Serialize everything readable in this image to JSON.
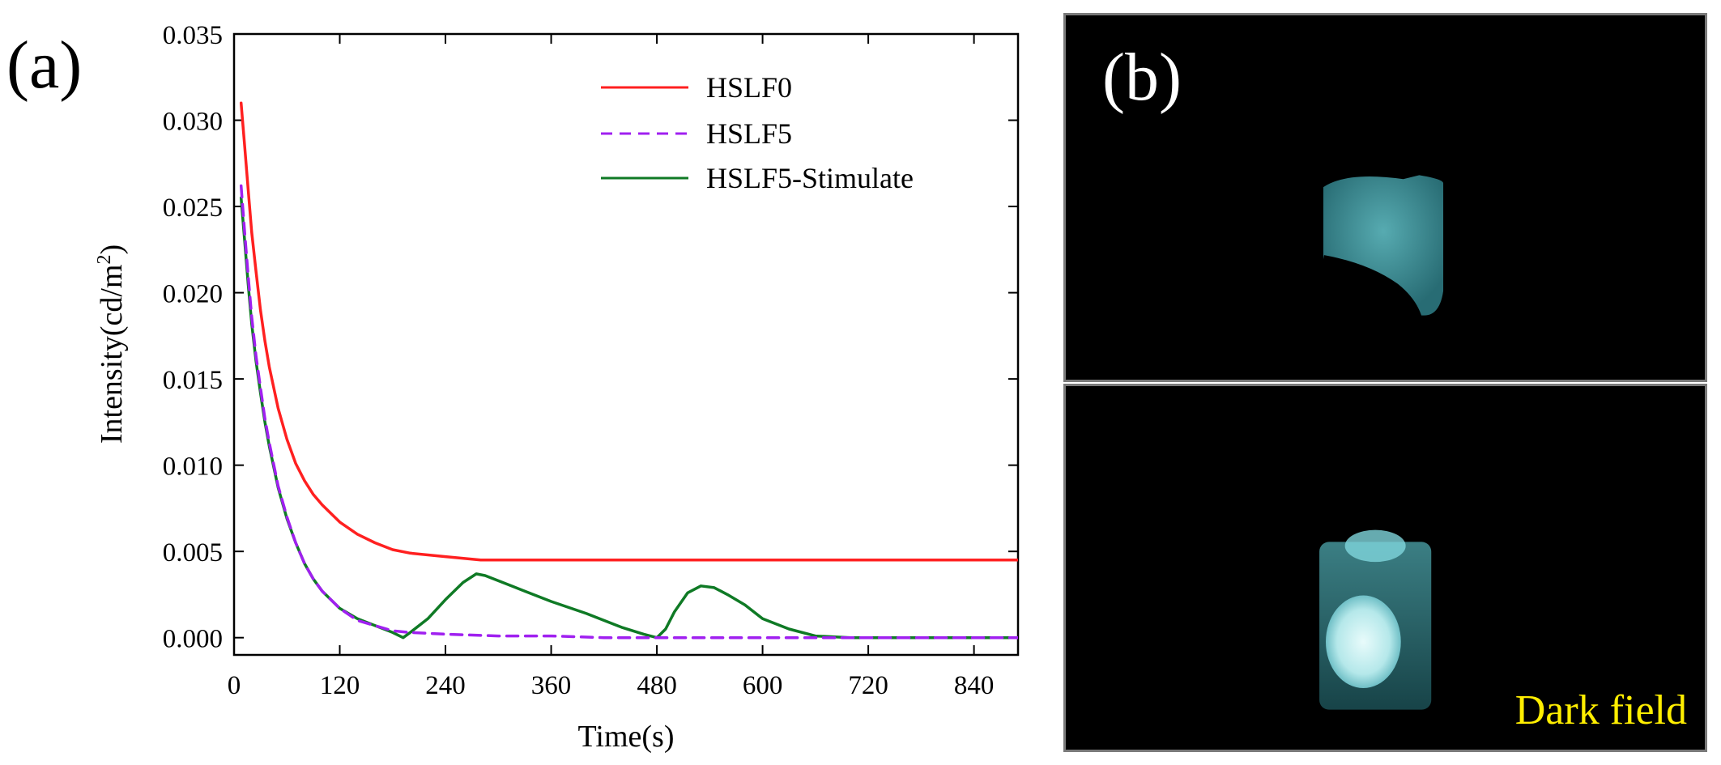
{
  "panel_a_label": "(a)",
  "panel_b_label": "(b)",
  "dark_field_caption": "Dark field",
  "colors": {
    "HSLF0": "#ff2020",
    "HSLF5": "#a020f0",
    "HSLF5-Stimulate": "#0f7a25",
    "caption": "#ffee00",
    "glow": "#5fcfd6"
  },
  "chart_data": {
    "type": "line",
    "title": "",
    "xlabel": "Time(s)",
    "ylabel": "Intensity(cd/m",
    "ylabel_superscript": "2",
    "ylabel_suffix": ")",
    "xlim": [
      0,
      890
    ],
    "ylim": [
      -0.001,
      0.035
    ],
    "x_ticks": [
      0,
      120,
      240,
      360,
      480,
      600,
      720,
      840
    ],
    "y_ticks": [
      0.0,
      0.005,
      0.01,
      0.015,
      0.02,
      0.025,
      0.03,
      0.035
    ],
    "y_tick_labels": [
      "0.000",
      "0.005",
      "0.010",
      "0.015",
      "0.020",
      "0.025",
      "0.030",
      "0.035"
    ],
    "legend_position": "top-right",
    "series": [
      {
        "name": "HSLF0",
        "style": "solid",
        "x": [
          8,
          12,
          16,
          20,
          25,
          30,
          35,
          40,
          50,
          60,
          70,
          80,
          90,
          100,
          120,
          140,
          160,
          180,
          200,
          240,
          280,
          320,
          360,
          480,
          600,
          720,
          840,
          890
        ],
        "y": [
          0.031,
          0.0285,
          0.026,
          0.0235,
          0.0212,
          0.019,
          0.0172,
          0.0157,
          0.0133,
          0.0115,
          0.0101,
          0.0091,
          0.0083,
          0.0077,
          0.0067,
          0.006,
          0.0055,
          0.0051,
          0.0049,
          0.0047,
          0.0045,
          0.0045,
          0.0045,
          0.0045,
          0.0045,
          0.0045,
          0.0045,
          0.0045
        ]
      },
      {
        "name": "HSLF5",
        "style": "dashed",
        "x": [
          8,
          12,
          16,
          20,
          25,
          30,
          35,
          40,
          50,
          60,
          70,
          80,
          90,
          100,
          120,
          140,
          160,
          180,
          200,
          240,
          300,
          360,
          420,
          480,
          600,
          720,
          840,
          890
        ],
        "y": [
          0.0262,
          0.0235,
          0.021,
          0.0186,
          0.0163,
          0.0145,
          0.0127,
          0.0113,
          0.0088,
          0.007,
          0.0055,
          0.0043,
          0.0034,
          0.0027,
          0.0017,
          0.001,
          0.0007,
          0.0004,
          0.0003,
          0.0002,
          0.0001,
          0.0001,
          0.0,
          0.0,
          0.0,
          0.0,
          0.0,
          0.0
        ]
      },
      {
        "name": "HSLF5-Stimulate",
        "style": "solid",
        "x": [
          8,
          12,
          16,
          20,
          25,
          30,
          35,
          40,
          50,
          60,
          70,
          80,
          90,
          100,
          120,
          140,
          160,
          180,
          192,
          200,
          220,
          240,
          260,
          275,
          285,
          300,
          330,
          360,
          400,
          440,
          465,
          480,
          490,
          500,
          515,
          530,
          545,
          560,
          580,
          600,
          630,
          660,
          700,
          800,
          890
        ],
        "y": [
          0.0255,
          0.023,
          0.0205,
          0.0182,
          0.016,
          0.0142,
          0.0125,
          0.0111,
          0.0087,
          0.0069,
          0.0055,
          0.0043,
          0.0034,
          0.0027,
          0.0017,
          0.0011,
          0.0007,
          0.0003,
          0.0,
          0.0003,
          0.0011,
          0.0022,
          0.0032,
          0.0037,
          0.0036,
          0.0033,
          0.0027,
          0.0021,
          0.0014,
          0.0006,
          0.0002,
          0.0,
          0.0005,
          0.0015,
          0.0026,
          0.003,
          0.0029,
          0.0025,
          0.0019,
          0.0011,
          0.0005,
          0.0001,
          0.0,
          0.0,
          0.0
        ]
      }
    ]
  }
}
